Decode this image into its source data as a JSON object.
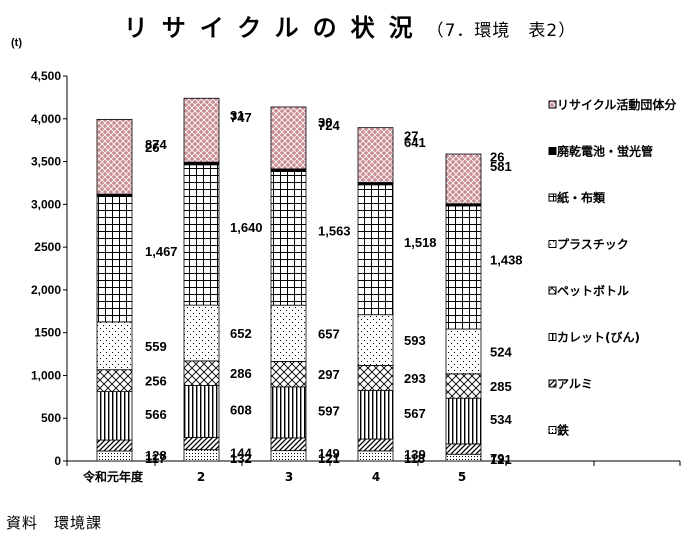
{
  "header": {
    "title": "リサイクルの状況",
    "subtitle": "（7．環境　表2）"
  },
  "footer": {
    "source": "資料　環境課"
  },
  "chart_data": {
    "type": "bar",
    "stacked": true,
    "unit_label": "(t)",
    "categories": [
      "令和元年度",
      "2",
      "3",
      "4",
      "5"
    ],
    "ylim": [
      0,
      4500
    ],
    "yticks": [
      "0",
      "500",
      "1,000",
      "1500",
      "2,000",
      "2500",
      "3,000",
      "3,500",
      "4,000",
      "4,500"
    ],
    "ytick_values": [
      0,
      500,
      1000,
      1500,
      2000,
      2500,
      3000,
      3500,
      4000,
      4500
    ],
    "legend_position": "right",
    "series": [
      {
        "name": "鉄",
        "values": [
          117,
          132,
          121,
          118,
          79
        ],
        "labels": [
          "117",
          "132",
          "121",
          "118",
          "79,"
        ],
        "pattern": "dots-dense",
        "color": "#000000"
      },
      {
        "name": "アルミ",
        "values": [
          128,
          144,
          149,
          139,
          121
        ],
        "labels": [
          "128",
          "144",
          "149",
          "139",
          "121"
        ],
        "pattern": "diagonal",
        "color": "#000000"
      },
      {
        "name": "カレット(びん)",
        "values": [
          566,
          608,
          597,
          567,
          534
        ],
        "labels": [
          "566",
          "608",
          "597",
          "567",
          "534"
        ],
        "pattern": "vertical",
        "color": "#000000"
      },
      {
        "name": "ペットボトル",
        "values": [
          256,
          286,
          297,
          293,
          285
        ],
        "labels": [
          "256",
          "286",
          "297",
          "293",
          "285"
        ],
        "pattern": "crosshatch",
        "color": "#000000"
      },
      {
        "name": "プラスチック",
        "values": [
          559,
          652,
          657,
          593,
          524
        ],
        "labels": [
          "559",
          "652",
          "657",
          "593",
          "524"
        ],
        "pattern": "dots-sparse",
        "color": "#000000"
      },
      {
        "name": "紙・布類",
        "values": [
          1467,
          1640,
          1563,
          1518,
          1438
        ],
        "labels": [
          "1,467",
          "1,640",
          "1,563",
          "1,518",
          "1,438"
        ],
        "pattern": "grid",
        "color": "#000000"
      },
      {
        "name": "廃乾電池・蛍光管",
        "values": [
          26,
          31,
          30,
          27,
          26
        ],
        "labels": [
          "26",
          "31",
          "30",
          "27",
          "26"
        ],
        "pattern": "solid",
        "color": "#000000"
      },
      {
        "name": "リサイクル活動団体分",
        "values": [
          874,
          747,
          724,
          641,
          581
        ],
        "labels": [
          "874",
          "747",
          "724",
          "641",
          "581"
        ],
        "pattern": "pink-check",
        "color": "#c98e94"
      }
    ]
  }
}
